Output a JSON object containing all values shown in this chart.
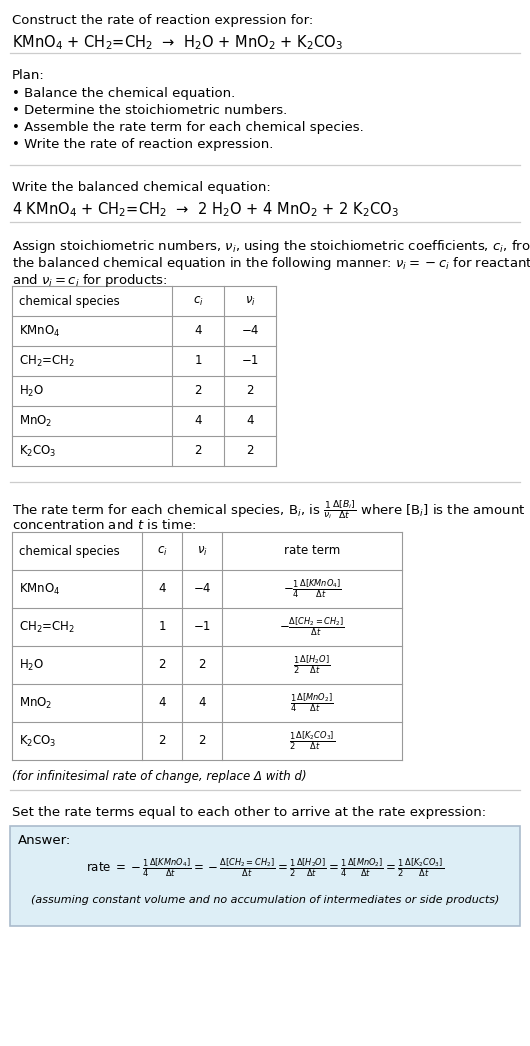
{
  "bg_color": "#ffffff",
  "text_color": "#000000",
  "answer_bg_color": "#ddeef6",
  "answer_border_color": "#aabbcc",
  "title_text": "Construct the rate of reaction expression for:",
  "reaction_unbalanced": "KMnO$_4$ + CH$_2$=CH$_2$  →  H$_2$O + MnO$_2$ + K$_2$CO$_3$",
  "plan_header": "Plan:",
  "plan_items": [
    "• Balance the chemical equation.",
    "• Determine the stoichiometric numbers.",
    "• Assemble the rate term for each chemical species.",
    "• Write the rate of reaction expression."
  ],
  "balanced_header": "Write the balanced chemical equation:",
  "reaction_balanced": "4 KMnO$_4$ + CH$_2$=CH$_2$  →  2 H$_2$O + 4 MnO$_2$ + 2 K$_2$CO$_3$",
  "stoich_intro_l1": "Assign stoichiometric numbers, $\\nu_i$, using the stoichiometric coefficients, $c_i$, from",
  "stoich_intro_l2": "the balanced chemical equation in the following manner: $\\nu_i = -c_i$ for reactants",
  "stoich_intro_l3": "and $\\nu_i = c_i$ for products:",
  "table1_headers": [
    "chemical species",
    "$c_i$",
    "$\\nu_i$"
  ],
  "table1_data": [
    [
      "KMnO$_4$",
      "4",
      "−4"
    ],
    [
      "CH$_2$=CH$_2$",
      "1",
      "−1"
    ],
    [
      "H$_2$O",
      "2",
      "2"
    ],
    [
      "MnO$_2$",
      "4",
      "4"
    ],
    [
      "K$_2$CO$_3$",
      "2",
      "2"
    ]
  ],
  "rate_intro_l1": "The rate term for each chemical species, B$_i$, is $\\frac{1}{\\nu_i}\\frac{\\Delta[B_i]}{\\Delta t}$ where [B$_i$] is the amount",
  "rate_intro_l2": "concentration and $t$ is time:",
  "table2_headers": [
    "chemical species",
    "$c_i$",
    "$\\nu_i$",
    "rate term"
  ],
  "table2_data": [
    [
      "KMnO$_4$",
      "4",
      "−4",
      "$-\\frac{1}{4}\\frac{\\Delta[KMnO_4]}{\\Delta t}$"
    ],
    [
      "CH$_2$=CH$_2$",
      "1",
      "−1",
      "$-\\frac{\\Delta[CH_2{=}CH_2]}{\\Delta t}$"
    ],
    [
      "H$_2$O",
      "2",
      "2",
      "$\\frac{1}{2}\\frac{\\Delta[H_2O]}{\\Delta t}$"
    ],
    [
      "MnO$_2$",
      "4",
      "4",
      "$\\frac{1}{4}\\frac{\\Delta[MnO_2]}{\\Delta t}$"
    ],
    [
      "K$_2$CO$_3$",
      "2",
      "2",
      "$\\frac{1}{2}\\frac{\\Delta[K_2CO_3]}{\\Delta t}$"
    ]
  ],
  "infinitesimal_note": "(for infinitesimal rate of change, replace Δ with d)",
  "set_equal_text": "Set the rate terms equal to each other to arrive at the rate expression:",
  "answer_label": "Answer:",
  "answer_rate_expr": "rate $= -\\frac{1}{4}\\frac{\\Delta[KMnO_4]}{\\Delta t} = -\\frac{\\Delta[CH_2{=}CH_2]}{\\Delta t} = \\frac{1}{2}\\frac{\\Delta[H_2O]}{\\Delta t} = \\frac{1}{4}\\frac{\\Delta[MnO_2]}{\\Delta t} = \\frac{1}{2}\\frac{\\Delta[K_2CO_3]}{\\Delta t}$",
  "answer_note": "(assuming constant volume and no accumulation of intermediates or side products)",
  "fs": 9.5,
  "fs_small": 8.5,
  "fs_chem": 10.5
}
